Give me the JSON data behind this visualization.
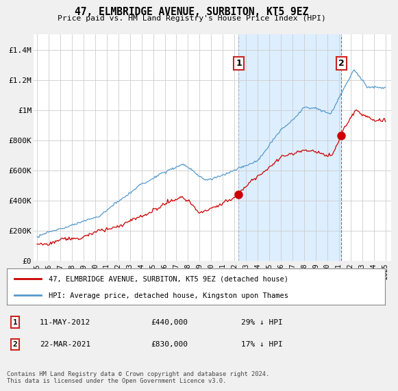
{
  "title": "47, ELMBRIDGE AVENUE, SURBITON, KT5 9EZ",
  "subtitle": "Price paid vs. HM Land Registry's House Price Index (HPI)",
  "fig_bg_color": "#f0f0f0",
  "plot_bg_color": "#ffffff",
  "highlight_color": "#ddeeff",
  "ylim": [
    0,
    1500000
  ],
  "yticks": [
    0,
    200000,
    400000,
    600000,
    800000,
    1000000,
    1200000,
    1400000
  ],
  "ytick_labels": [
    "£0",
    "£200K",
    "£400K",
    "£600K",
    "£800K",
    "£1M",
    "£1.2M",
    "£1.4M"
  ],
  "xstart": 1995,
  "xend": 2025,
  "red_line_label": "47, ELMBRIDGE AVENUE, SURBITON, KT5 9EZ (detached house)",
  "blue_line_label": "HPI: Average price, detached house, Kingston upon Thames",
  "point1_date": "11-MAY-2012",
  "point1_value": 440000,
  "point1_pct": "29% ↓ HPI",
  "point1_year": 2012.37,
  "point2_date": "22-MAR-2021",
  "point2_value": 830000,
  "point2_pct": "17% ↓ HPI",
  "point2_year": 2021.22,
  "footer": "Contains HM Land Registry data © Crown copyright and database right 2024.\nThis data is licensed under the Open Government Licence v3.0.",
  "hpi_color": "#5599cc",
  "price_color": "#cc0000",
  "point_color": "#cc0000",
  "vline_color": "#cc4444",
  "marker_box_color": "#cc2222",
  "grid_color": "#cccccc"
}
